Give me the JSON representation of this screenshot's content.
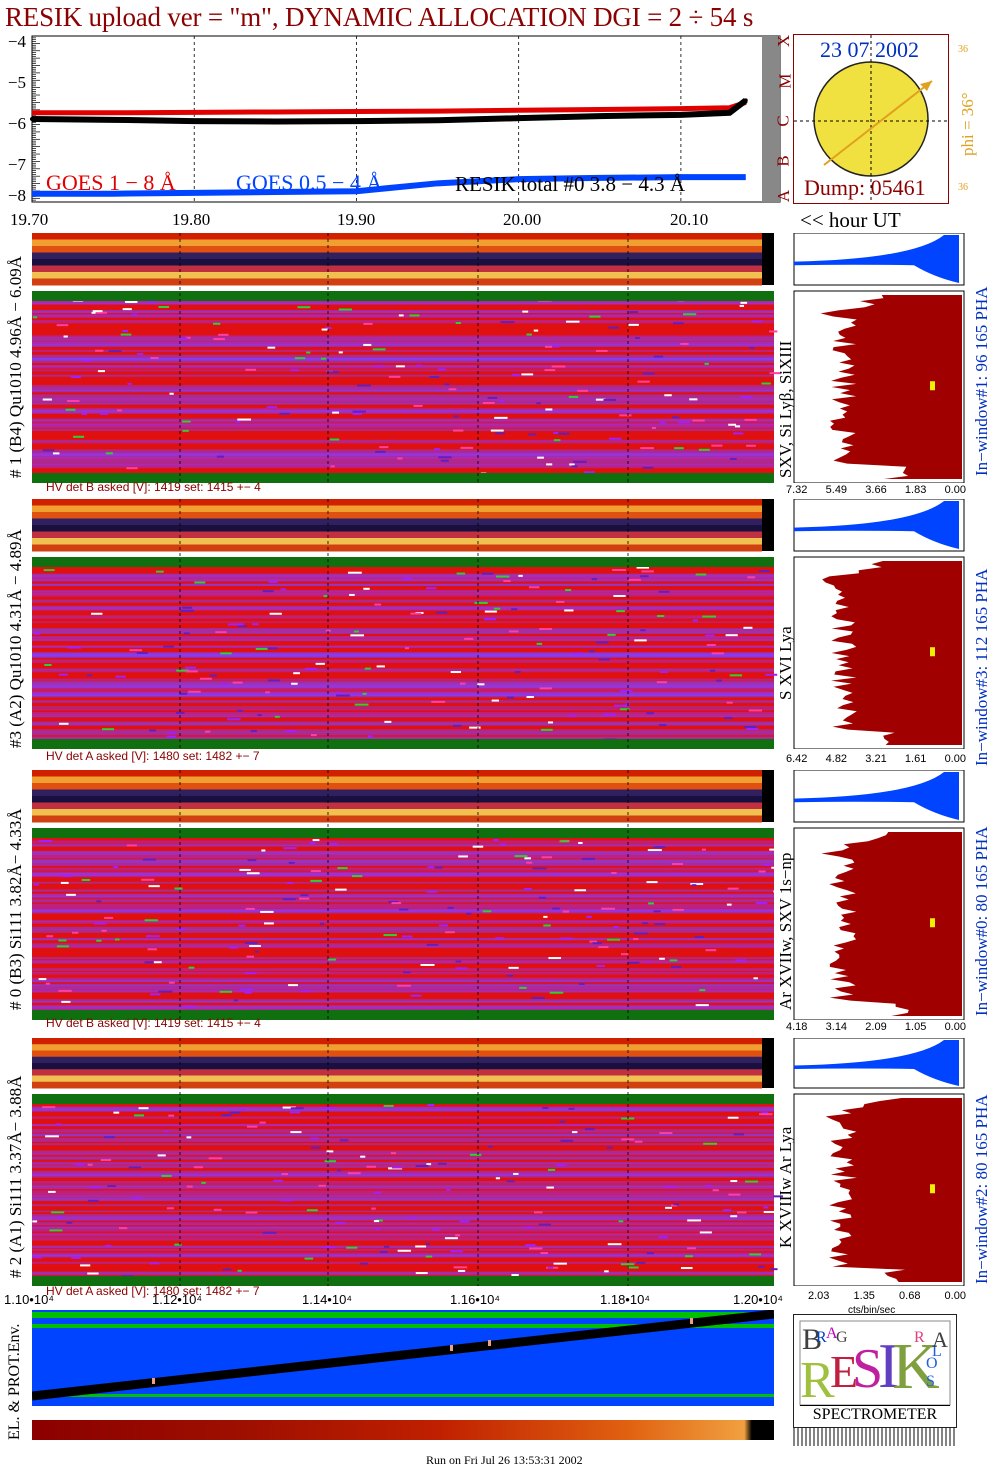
{
  "title": "RESIK upload ver = \"m\", DYNAMIC ALLOCATION  DGI =   2 ÷  54 s",
  "colors": {
    "title": "#8b0000",
    "goes_1_8": "#e00000",
    "goes_05_4": "#0044ff",
    "resik_total": "#000000",
    "dark_red": "#a00000",
    "blue": "#0044ff",
    "sun": "#f0e040",
    "orange": "#e0a020"
  },
  "top_chart": {
    "y_ticks": [
      "−4",
      "−5",
      "−6",
      "−7",
      "−8"
    ],
    "x_ticks": [
      "19.70",
      "19.80",
      "19.90",
      "20.00",
      "20.10"
    ],
    "x_unit_label": "<< hour UT",
    "class_letters": [
      "A",
      "B",
      "C",
      "M",
      "X"
    ],
    "legend": {
      "goes_1_8": "GOES 1 − 8 Å",
      "goes_05_4": "GOES 0.5 − 4 Å",
      "resik_total": "RESIK total #0  3.8 − 4.3 Å"
    }
  },
  "sun_box": {
    "date": "23 07 2002",
    "dump": "Dump: 05461",
    "phi": "phi = 36°",
    "small_top": "36",
    "small_bottom": "36"
  },
  "panels": [
    {
      "left_label": "# 1 (B4) Qu1010 4.96Å − 6.09Å",
      "right_label": "SXV, Si Lyβ, SiXIII",
      "hv": "HV det B asked [V]:  1419 set:  1415 +−   4",
      "window": "In−window#1:  96 165  PHA",
      "hist_ticks": [
        "7.32",
        "5.49",
        "3.66",
        "1.83",
        "0.00"
      ],
      "dot_color": "yellow"
    },
    {
      "left_label": "#3 (A2) Qu1010  4.31Å − 4.89Å",
      "right_label": "S XVI Lya",
      "hv": "HV det A asked [V]:  1480 set:  1482 +−   7",
      "window": "In−window#3:  112 165  PHA",
      "hist_ticks": [
        "6.42",
        "4.82",
        "3.21",
        "1.61",
        "0.00"
      ],
      "dot_color": "yellow"
    },
    {
      "left_label": "# 0 (B3) Si111  3.82Å− 4.33Å",
      "right_label": "Ar XVIIw,  SXV 1s−np",
      "hv": "HV det B asked [V]:  1419 set:  1415 +−   4",
      "window": "In−window#0:   80 165  PHA",
      "hist_ticks": [
        "4.18",
        "3.14",
        "2.09",
        "1.05",
        "0.00"
      ],
      "dot_color": "yellow"
    },
    {
      "left_label": "# 2 (A1) Si111  3.37Å− 3.88Å",
      "right_label": "K XVIIIw  Ar Lya",
      "hv": "HV det A asked [V]:  1480 set:  1482 +−   7",
      "window": "In−window#2:   80 165  PHA",
      "hist_ticks": [
        "2.03",
        "1.35",
        "0.68",
        "0.00"
      ],
      "dot_color": "yellow"
    }
  ],
  "hist_unit": "cts/bin/sec",
  "bottom": {
    "x_ticks": [
      "1.10•10⁴",
      "1.12•10⁴",
      "1.14•10⁴",
      "1.16•10⁴",
      "1.18•10⁴",
      "1.20•10⁴"
    ],
    "left_label": "EL. & PROT.Env.",
    "logo_bottom": "SPECTROMETER",
    "logo_letters": [
      "B",
      "R",
      "A",
      "G",
      "R",
      "E",
      "S",
      "I",
      "K",
      "S",
      "O",
      "L",
      "A",
      "R"
    ]
  },
  "footer": "Run on Fri Jul 26 13:53:31 2002",
  "chart_data": {
    "type": "line",
    "x": [
      19.7,
      19.75,
      19.8,
      19.85,
      19.9,
      19.95,
      20.0,
      20.05,
      20.1,
      20.13,
      20.14
    ],
    "series": [
      {
        "name": "GOES 1 − 8 Å",
        "values": [
          -5.85,
          -5.85,
          -5.84,
          -5.83,
          -5.82,
          -5.81,
          -5.79,
          -5.77,
          -5.75,
          -5.73,
          -5.6
        ]
      },
      {
        "name": "GOES 0.5 − 4 Å",
        "values": [
          -7.8,
          -7.8,
          -7.78,
          -7.76,
          -7.74,
          -7.55,
          -7.45,
          -7.42,
          -7.4,
          -7.4,
          -7.4
        ]
      },
      {
        "name": "RESIK total #0  3.8 − 4.3 Å",
        "values": [
          -6.0,
          -6.02,
          -6.05,
          -6.06,
          -6.05,
          -6.03,
          -5.98,
          -5.93,
          -5.9,
          -5.85,
          -5.55
        ]
      }
    ],
    "xlim": [
      19.7,
      20.15
    ],
    "ylim": [
      -8,
      -4
    ],
    "ylabel": "",
    "xlabel": "<< hour UT",
    "grid": true,
    "legend_placement": "bottom"
  }
}
